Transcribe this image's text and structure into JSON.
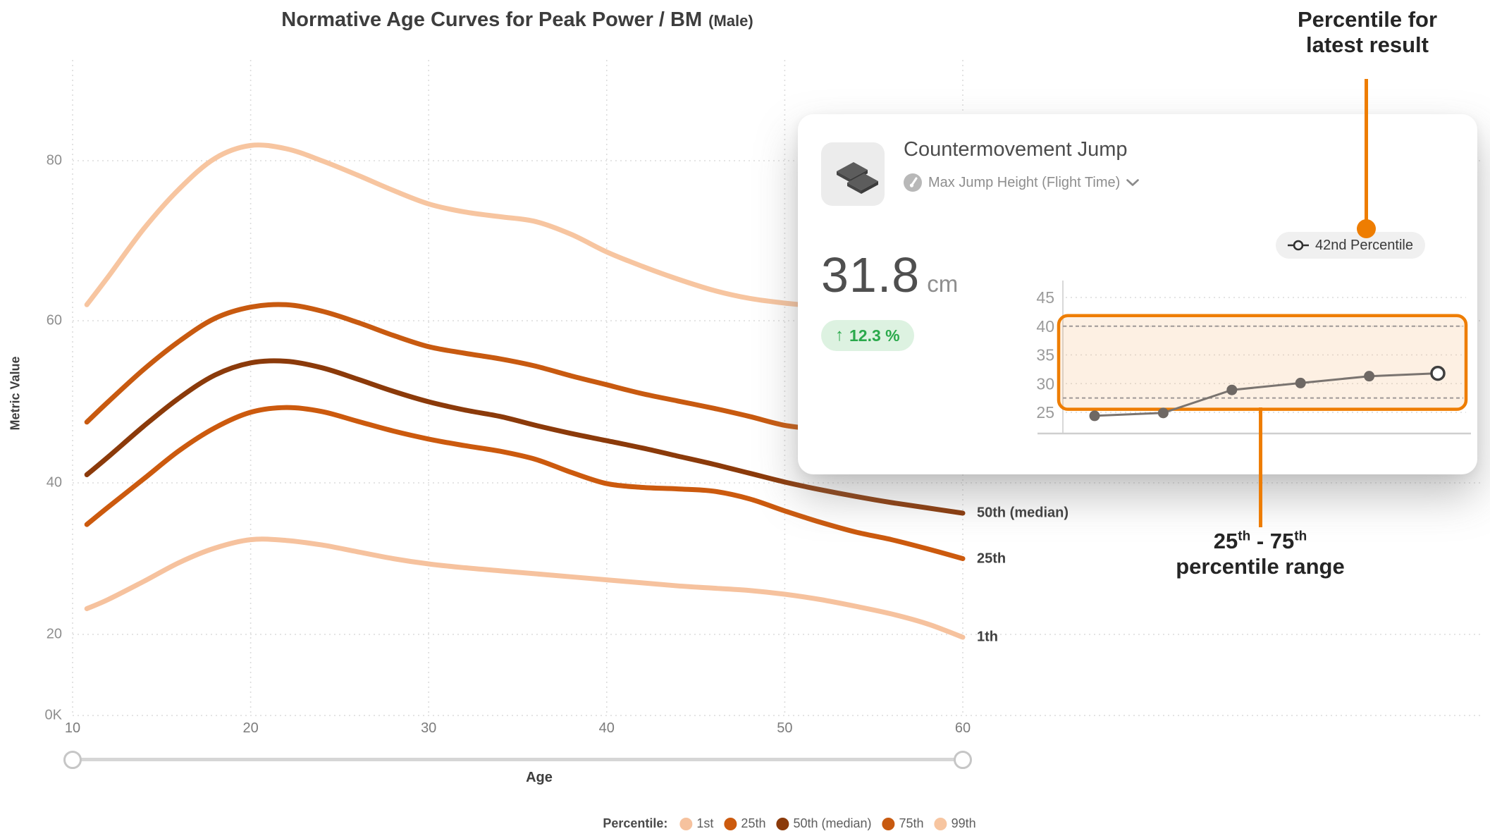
{
  "title": {
    "main": "Normative Age Curves for Peak Power / BM",
    "suffix": "(Male)"
  },
  "axes": {
    "y_label": "Metric Value",
    "x_label": "Age",
    "y_ticks": [
      {
        "label": "0K",
        "value": 0
      },
      {
        "label": "20",
        "value": 20
      },
      {
        "label": "40",
        "value": 40
      },
      {
        "label": "60",
        "value": 60
      },
      {
        "label": "80",
        "value": 80
      }
    ],
    "x_ticks": [
      10,
      20,
      30,
      40,
      50,
      60
    ]
  },
  "curve_labels": [
    {
      "text": "50th (median)",
      "series": "50th (median)"
    },
    {
      "text": "25th",
      "series": "25th"
    },
    {
      "text": "1th",
      "series": "1st"
    }
  ],
  "legend": {
    "title": "Percentile:",
    "items": [
      {
        "label": "1st",
        "color": "#F6C29E"
      },
      {
        "label": "25th",
        "color": "#CC5A0E"
      },
      {
        "label": "50th (median)",
        "color": "#8B3A0A"
      },
      {
        "label": "75th",
        "color": "#C85A10"
      },
      {
        "label": "99th",
        "color": "#F7C5A0"
      }
    ]
  },
  "card": {
    "title": "Countermovement Jump",
    "metric": "Max Jump Height (Flight Time)",
    "value": "31.8",
    "unit": "cm",
    "change_arrow": "↑",
    "change": "12.3 %",
    "badge": "42nd Percentile"
  },
  "annotations": {
    "top_line1": "Percentile for",
    "top_line2": "latest result",
    "range_p1": "25",
    "range_sup1": "th",
    "range_mid": " - 75",
    "range_sup2": "th",
    "range_line2": "percentile range",
    "accent_color": "#EE7D01"
  },
  "chart_data": {
    "type": "line",
    "title": "Normative Age Curves for Peak Power / BM (Male)",
    "xlabel": "Age",
    "ylabel": "Metric Value",
    "x_range": [
      10,
      60
    ],
    "y_tick_values": [
      0,
      20,
      40,
      60,
      80
    ],
    "grid": true,
    "x": [
      10.8,
      12,
      14,
      16,
      18,
      20,
      22,
      24,
      26,
      28,
      30,
      32,
      34,
      36,
      38,
      40,
      42,
      44,
      46,
      48,
      50,
      52,
      54,
      56,
      58,
      60
    ],
    "series": [
      {
        "name": "99th",
        "color": "#F7C5A0",
        "values": [
          62,
          65.5,
          71.5,
          76.5,
          80.3,
          81.9,
          81.5,
          80,
          78.2,
          76.3,
          74.6,
          73.6,
          73,
          72.4,
          70.8,
          68.6,
          66.8,
          65.2,
          63.8,
          62.8,
          62.2,
          61.8,
          61.5,
          61.3,
          61.1,
          61
        ]
      },
      {
        "name": "75th",
        "color": "#C85A10",
        "values": [
          47.5,
          50,
          54,
          57.5,
          60.3,
          61.7,
          62,
          61.2,
          59.8,
          58.2,
          56.8,
          56,
          55.3,
          54.4,
          53.2,
          52.1,
          51,
          50.1,
          49.2,
          48.2,
          47.1,
          46.6,
          46.2,
          46,
          45.9,
          45.8
        ]
      },
      {
        "name": "50th (median)",
        "color": "#8B3A0A",
        "values": [
          41,
          43.2,
          47,
          50.5,
          53.3,
          54.8,
          55,
          54.2,
          52.8,
          51.3,
          50,
          49,
          48.2,
          47.1,
          46.1,
          45.2,
          44.3,
          43.3,
          42.3,
          41.2,
          40.1,
          39.1,
          38.2,
          37.4,
          36.7,
          36
        ]
      },
      {
        "name": "25th",
        "color": "#CC5A0E",
        "values": [
          34.5,
          36.8,
          40.5,
          44,
          46.8,
          48.7,
          49.3,
          48.8,
          47.6,
          46.4,
          45.4,
          44.6,
          43.9,
          42.9,
          41.3,
          39.9,
          39.4,
          39.2,
          38.9,
          37.9,
          36.3,
          34.8,
          33.5,
          32.5,
          31.3,
          30
        ]
      },
      {
        "name": "1st",
        "color": "#F6C29E",
        "values": [
          23.4,
          24.6,
          27,
          29.5,
          31.4,
          32.5,
          32.4,
          31.8,
          30.9,
          30,
          29.3,
          28.8,
          28.4,
          28,
          27.6,
          27.2,
          26.8,
          26.4,
          26.1,
          25.8,
          25.3,
          24.6,
          23.7,
          22.7,
          21.4,
          19.3
        ]
      }
    ],
    "sparkline": {
      "type": "line",
      "y_ticks": [
        45,
        40,
        35,
        30,
        25
      ],
      "values": [
        24.4,
        24.9,
        28.9,
        30.1,
        31.3,
        31.8
      ],
      "highlight_last": true,
      "band": {
        "low": 27.5,
        "high": 40
      },
      "line_color": "#7a7470",
      "point_color": "#6e6864",
      "band_border_color": "#EE7D01"
    }
  }
}
